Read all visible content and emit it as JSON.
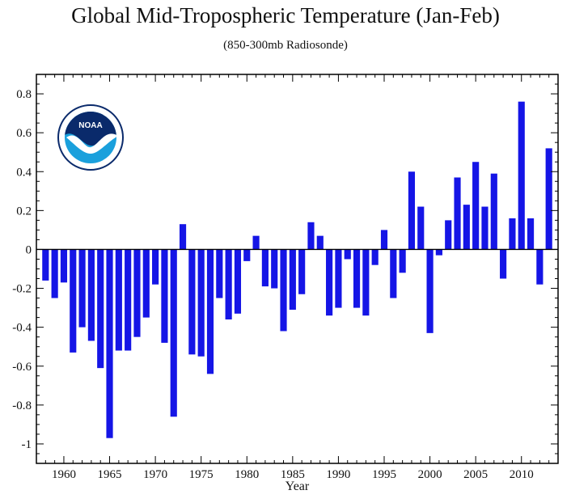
{
  "chart_data": {
    "type": "bar",
    "title": "Global Mid-Tropospheric Temperature (Jan-Feb)",
    "subtitle": "(850-300mb Radiosonde)",
    "xlabel": "Year",
    "ylabel": "",
    "xlim": [
      1957,
      2014
    ],
    "ylim": [
      -1.1,
      0.9
    ],
    "xticks": [
      1960,
      1965,
      1970,
      1975,
      1980,
      1985,
      1990,
      1995,
      2000,
      2005,
      2010
    ],
    "xtick_labels": [
      "1960",
      "1965",
      "1970",
      "1975",
      "1980",
      "1985",
      "1990",
      "1995",
      "2000",
      "2005",
      "2010"
    ],
    "yticks": [
      0.8,
      0.6,
      0.4,
      0.2,
      0,
      -0.2,
      -0.4,
      -0.6,
      -0.8,
      -1
    ],
    "ytick_labels": [
      "0.8",
      "0.6",
      "0.4",
      "0.2",
      "0",
      "-0.2",
      "-0.4",
      "-0.6",
      "-0.8",
      "-1"
    ],
    "grid": false,
    "bar_color": "#1515e6",
    "x": [
      1958,
      1959,
      1960,
      1961,
      1962,
      1963,
      1964,
      1965,
      1966,
      1967,
      1968,
      1969,
      1970,
      1971,
      1972,
      1973,
      1974,
      1975,
      1976,
      1977,
      1978,
      1979,
      1980,
      1981,
      1982,
      1983,
      1984,
      1985,
      1986,
      1987,
      1988,
      1989,
      1990,
      1991,
      1992,
      1993,
      1994,
      1995,
      1996,
      1997,
      1998,
      1999,
      2000,
      2001,
      2002,
      2003,
      2004,
      2005,
      2006,
      2007,
      2008,
      2009,
      2010,
      2011,
      2012,
      2013
    ],
    "values": [
      -0.16,
      -0.25,
      -0.17,
      -0.53,
      -0.4,
      -0.47,
      -0.61,
      -0.97,
      -0.52,
      -0.52,
      -0.45,
      -0.35,
      -0.18,
      -0.48,
      -0.86,
      0.13,
      -0.54,
      -0.55,
      -0.64,
      -0.25,
      -0.36,
      -0.33,
      -0.06,
      0.07,
      -0.19,
      -0.2,
      -0.42,
      -0.31,
      -0.23,
      0.14,
      0.07,
      -0.34,
      -0.3,
      -0.05,
      -0.3,
      -0.34,
      -0.08,
      0.1,
      -0.25,
      -0.12,
      0.4,
      0.22,
      -0.43,
      -0.03,
      0.15,
      0.37,
      0.23,
      0.45,
      0.22,
      0.39,
      -0.15,
      0.16,
      0.76,
      0.16,
      -0.18,
      0.52
    ]
  },
  "logo": {
    "icon": "noaa-logo",
    "text": "NOAA",
    "ring_text": "NATIONAL OCEANIC AND ATMOSPHERIC ADMINISTRATION · U.S. DEPARTMENT OF COMMERCE",
    "colors": {
      "dark": "#0a2a6b",
      "light": "#1aa0dc",
      "ring": "#ffffff"
    }
  }
}
